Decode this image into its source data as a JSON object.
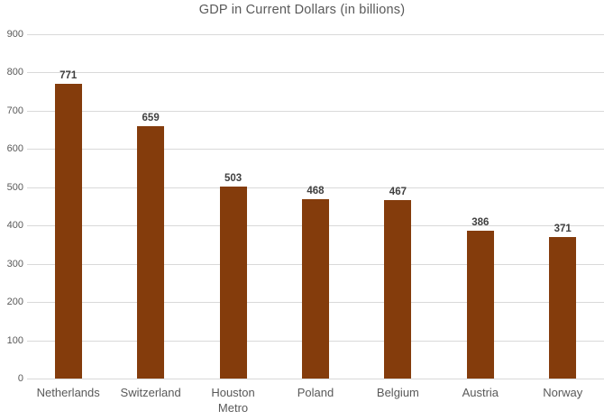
{
  "chart_data": {
    "type": "bar",
    "title": "GDP in Current Dollars (in billions)",
    "categories": [
      "Netherlands",
      "Switzerland",
      "Houston Metro",
      "Poland",
      "Belgium",
      "Austria",
      "Norway"
    ],
    "values": [
      771,
      659,
      503,
      468,
      467,
      386,
      371
    ],
    "ylim": [
      0,
      900
    ],
    "yticks": [
      "900",
      "800",
      "700",
      "600",
      "500",
      "400",
      "300",
      "200",
      "100",
      "0"
    ],
    "grid": "horizontal-only",
    "legend": "none",
    "colors": {
      "bar": "#843C0C",
      "gridline": "#D9D9D9",
      "axis_text": "#595959",
      "title_text": "#595959",
      "value_label_text": "#404040",
      "background": "#FFFFFF"
    }
  }
}
